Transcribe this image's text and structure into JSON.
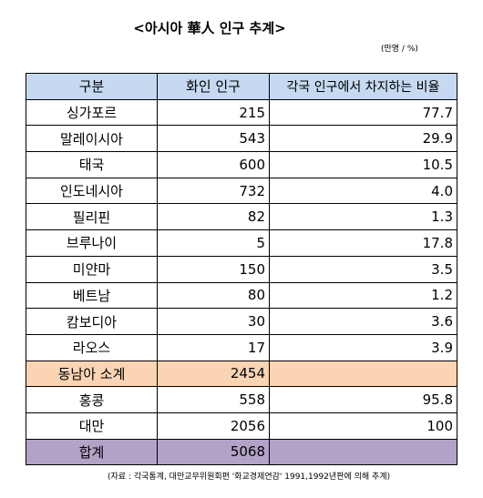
{
  "header": {
    "title": "<아시아 華人 인구 추계>",
    "unit": "(만명 / %)"
  },
  "table": {
    "columns": [
      "구분",
      "화인 인구",
      "각국 인구에서 차지하는 비율"
    ],
    "rows": [
      [
        "싱가포르",
        "215",
        "77.7"
      ],
      [
        "말레이시아",
        "543",
        "29.9"
      ],
      [
        "태국",
        "600",
        "10.5"
      ],
      [
        "인도네시아",
        "732",
        "4.0"
      ],
      [
        "필리핀",
        "82",
        "1.3"
      ],
      [
        "브루나이",
        "5",
        "17.8"
      ],
      [
        "미얀마",
        "150",
        "3.5"
      ],
      [
        "베트남",
        "80",
        "1.2"
      ],
      [
        "캄보디아",
        "30",
        "3.6"
      ],
      [
        "라오스",
        "17",
        "3.9"
      ],
      [
        "동남아 소계",
        "2454"
      ],
      [
        "홍콩",
        "558",
        "95.8"
      ],
      [
        "대만",
        "2056",
        "100"
      ],
      [
        "합계",
        "5068"
      ]
    ]
  },
  "footer": {
    "source": "(자료 : 각국통계, 대만교무위원회편 '화교경제연감' 1991,1992년판에 의해 추계)"
  }
}
